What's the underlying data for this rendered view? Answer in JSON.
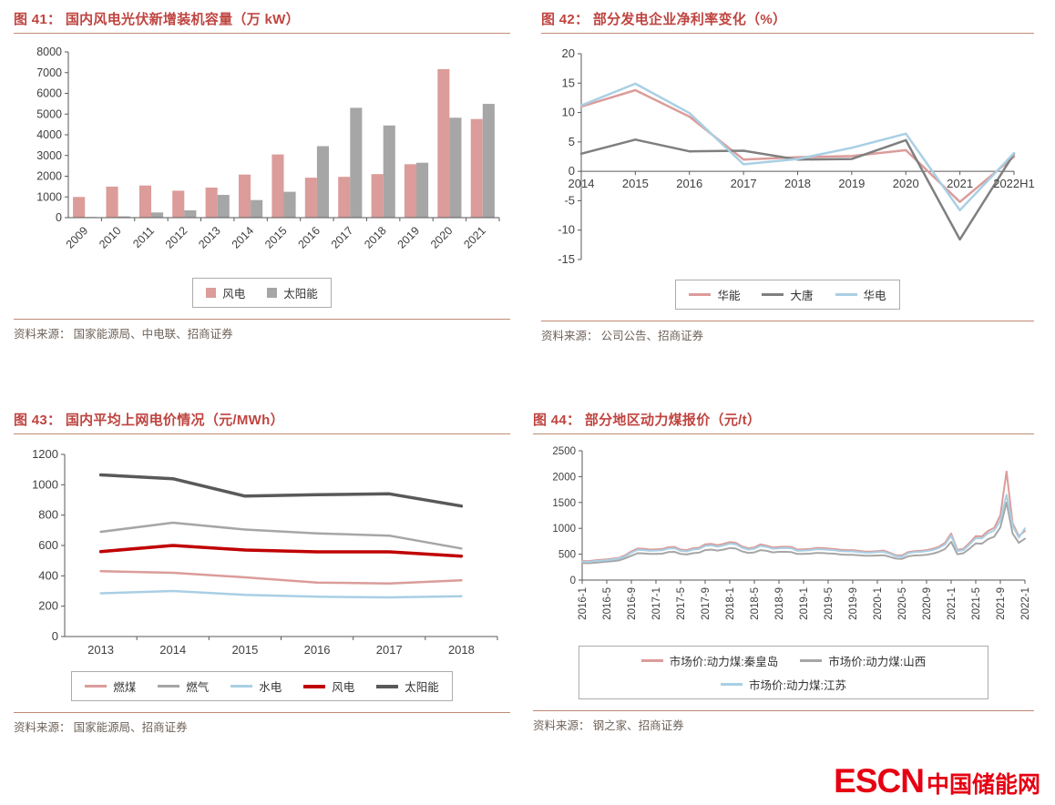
{
  "page": {
    "background": "#ffffff"
  },
  "logo": {
    "escn": "ESCN",
    "site": "中国储能网",
    "color": "#e60012"
  },
  "colors": {
    "title_red": "#bf4440",
    "rule_brown": "#c08b72",
    "axis_gray": "#595959",
    "pink": "#db9c9a",
    "gray": "#a6a6a6",
    "dark_gray": "#7f7f7f",
    "light_blue": "#a9cfe4",
    "dark_red": "#c00000"
  },
  "chart_data": [
    {
      "id": "fig41",
      "type": "bar",
      "title": "图 41：  国内风电光伏新增装机容量（万 kW）",
      "source": "资料来源： 国家能源局、中电联、招商证券",
      "categories": [
        "2009",
        "2010",
        "2011",
        "2012",
        "2013",
        "2014",
        "2015",
        "2016",
        "2017",
        "2018",
        "2019",
        "2020",
        "2021"
      ],
      "series": [
        {
          "name": "风电",
          "color": "#db9c9a",
          "values": [
            1000,
            1500,
            1550,
            1300,
            1450,
            2080,
            3050,
            1930,
            1970,
            2100,
            2580,
            7170,
            4760
          ]
        },
        {
          "name": "太阳能",
          "color": "#a6a6a6",
          "values": [
            30,
            60,
            250,
            350,
            1100,
            850,
            1250,
            3450,
            5300,
            4450,
            2650,
            4820,
            5490
          ]
        }
      ],
      "ylim": [
        0,
        8000
      ],
      "ytick": 1000,
      "grid": false,
      "legend_position": "bottom"
    },
    {
      "id": "fig42",
      "type": "line",
      "title": "图 42：  部分发电企业净利率变化（%）",
      "source": "资料来源： 公司公告、招商证券",
      "categories": [
        "2014",
        "2015",
        "2016",
        "2017",
        "2018",
        "2019",
        "2020",
        "2021",
        "2022H1"
      ],
      "series": [
        {
          "name": "华能",
          "color": "#db9c9a",
          "width": 2.5,
          "values": [
            11,
            13.8,
            9.3,
            2,
            2.4,
            2.6,
            3.6,
            -5.2,
            2.5
          ]
        },
        {
          "name": "大唐",
          "color": "#7f7f7f",
          "width": 2.5,
          "values": [
            3,
            5.4,
            3.4,
            3.5,
            2,
            2.1,
            5.3,
            -11.6,
            3
          ]
        },
        {
          "name": "华电",
          "color": "#a9cfe4",
          "width": 2.5,
          "values": [
            11.2,
            14.9,
            9.9,
            1.2,
            2.1,
            4,
            6.4,
            -6.6,
            3.1
          ]
        }
      ],
      "ylim": [
        -15,
        20
      ],
      "ytick": 5,
      "x_axis_at_zero": true,
      "grid": false,
      "legend_position": "bottom"
    },
    {
      "id": "fig43",
      "type": "line",
      "title": "图 43：  国内平均上网电价情况（元/MWh）",
      "source": "资料来源： 国家能源局、招商证券",
      "categories": [
        "2013",
        "2014",
        "2015",
        "2016",
        "2017",
        "2018"
      ],
      "series": [
        {
          "name": "燃煤",
          "color": "#db9c9a",
          "width": 2.5,
          "values": [
            430,
            420,
            390,
            355,
            350,
            370
          ]
        },
        {
          "name": "燃气",
          "color": "#a6a6a6",
          "width": 2.5,
          "values": [
            690,
            750,
            705,
            680,
            665,
            580
          ]
        },
        {
          "name": "水电",
          "color": "#a9cfe4",
          "width": 2.5,
          "values": [
            285,
            300,
            275,
            262,
            258,
            265
          ]
        },
        {
          "name": "风电",
          "color": "#c00000",
          "width": 3.5,
          "values": [
            560,
            600,
            570,
            558,
            558,
            530
          ]
        },
        {
          "name": "太阳能",
          "color": "#595959",
          "width": 3.5,
          "values": [
            1065,
            1040,
            925,
            935,
            940,
            860
          ]
        }
      ],
      "ylim": [
        0,
        1200
      ],
      "ytick": 200,
      "grid": false,
      "legend_position": "bottom"
    },
    {
      "id": "fig44",
      "type": "line",
      "title": "图 44：  部分地区动力煤报价（元/t）",
      "source": "资料来源： 钢之家、招商证券",
      "categories": [
        "2016-1",
        "2016-5",
        "2016-9",
        "2017-1",
        "2017-5",
        "2017-9",
        "2018-1",
        "2018-5",
        "2018-9",
        "2019-1",
        "2019-5",
        "2019-9",
        "2020-1",
        "2020-5",
        "2020-9",
        "2021-1",
        "2021-5",
        "2021-9",
        "2022-1"
      ],
      "tick_every": 4,
      "series": [
        {
          "name": "市场价:动力煤:秦皇岛",
          "color": "#db9c9a",
          "width": 2,
          "values": [
            370,
            365,
            380,
            390,
            400,
            415,
            430,
            480,
            555,
            610,
            605,
            590,
            595,
            600,
            635,
            640,
            590,
            580,
            615,
            625,
            690,
            700,
            675,
            700,
            735,
            720,
            650,
            615,
            630,
            690,
            665,
            630,
            640,
            645,
            640,
            590,
            595,
            600,
            620,
            620,
            610,
            600,
            585,
            580,
            580,
            565,
            550,
            550,
            560,
            570,
            530,
            480,
            475,
            540,
            560,
            565,
            580,
            605,
            645,
            720,
            900,
            585,
            605,
            720,
            850,
            845,
            950,
            1010,
            1250,
            2100,
            1100,
            850,
            950
          ]
        },
        {
          "name": "市场价:动力煤:山西",
          "color": "#a6a6a6",
          "width": 2,
          "values": [
            330,
            325,
            335,
            345,
            355,
            365,
            380,
            420,
            470,
            520,
            515,
            505,
            505,
            510,
            540,
            545,
            505,
            495,
            520,
            530,
            580,
            590,
            570,
            590,
            620,
            610,
            555,
            525,
            535,
            580,
            565,
            535,
            545,
            545,
            540,
            505,
            505,
            510,
            525,
            525,
            515,
            510,
            495,
            490,
            490,
            480,
            470,
            470,
            475,
            480,
            450,
            415,
            410,
            460,
            475,
            480,
            490,
            510,
            545,
            600,
            740,
            500,
            520,
            610,
            710,
            705,
            790,
            840,
            1020,
            1500,
            900,
            720,
            800
          ]
        },
        {
          "name": "市场价:动力煤:江苏",
          "color": "#a9cfe4",
          "width": 2,
          "values": [
            355,
            350,
            365,
            375,
            385,
            400,
            415,
            460,
            530,
            585,
            580,
            565,
            570,
            575,
            610,
            615,
            565,
            555,
            590,
            600,
            660,
            670,
            645,
            670,
            705,
            690,
            625,
            590,
            605,
            660,
            640,
            605,
            615,
            620,
            615,
            565,
            570,
            575,
            595,
            595,
            585,
            575,
            560,
            555,
            555,
            540,
            530,
            530,
            540,
            545,
            510,
            460,
            455,
            520,
            540,
            545,
            560,
            580,
            620,
            690,
            860,
            560,
            580,
            690,
            810,
            805,
            905,
            960,
            1150,
            1650,
            1050,
            820,
            1000
          ]
        }
      ],
      "ylim": [
        0,
        2500
      ],
      "ytick": 500,
      "grid": false,
      "legend_position": "bottom"
    }
  ]
}
